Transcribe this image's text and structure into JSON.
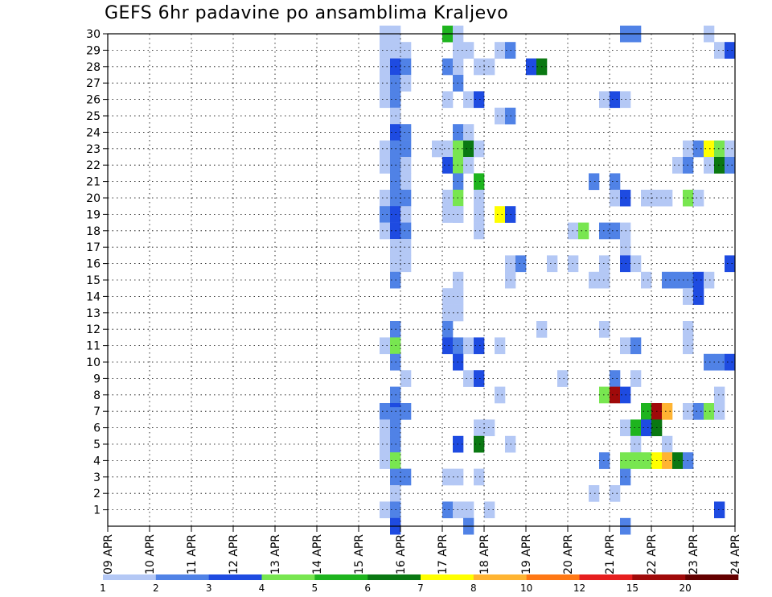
{
  "chart_data": {
    "type": "heatmap",
    "title": "GEFS 6hr padavine po ansamblima Kraljevo",
    "xlabel": "",
    "ylabel": "",
    "x_ticks": [
      "09 APR",
      "10 APR",
      "11 APR",
      "12 APR",
      "13 APR",
      "14 APR",
      "15 APR",
      "16 APR",
      "17 APR",
      "18 APR",
      "19 APR",
      "20 APR",
      "21 APR",
      "22 APR",
      "23 APR",
      "24 APR"
    ],
    "xlim_days": [
      0,
      15
    ],
    "time_step_hours": 6,
    "y_ticks": [
      1,
      2,
      3,
      4,
      5,
      6,
      7,
      8,
      9,
      10,
      11,
      12,
      13,
      14,
      15,
      16,
      17,
      18,
      19,
      20,
      21,
      22,
      23,
      24,
      25,
      26,
      27,
      28,
      29,
      30
    ],
    "ylim": [
      0,
      30
    ],
    "grid": true,
    "colorbar": {
      "labels": [
        "1",
        "2",
        "3",
        "4",
        "5",
        "6",
        "7",
        "8",
        "10",
        "12",
        "15",
        "20"
      ],
      "colors": [
        "#b4c8f5",
        "#5082e6",
        "#1e4be1",
        "#78e650",
        "#1eb41e",
        "#0a7812",
        "#ffff00",
        "#ffb432",
        "#ff7814",
        "#e61e1e",
        "#a00a0a",
        "#640000"
      ]
    },
    "cells": [
      [
        30,
        6.5,
        1
      ],
      [
        30,
        6.75,
        1
      ],
      [
        30,
        8,
        5
      ],
      [
        30,
        8.25,
        1
      ],
      [
        30,
        12.25,
        2
      ],
      [
        30,
        12.5,
        2
      ],
      [
        30,
        14.25,
        1
      ],
      [
        29,
        6.5,
        1
      ],
      [
        29,
        6.75,
        1
      ],
      [
        29,
        7,
        1
      ],
      [
        29,
        8.25,
        1
      ],
      [
        29,
        8.5,
        1
      ],
      [
        29,
        9.25,
        1
      ],
      [
        29,
        9.5,
        2
      ],
      [
        29,
        14.5,
        1
      ],
      [
        29,
        14.75,
        3
      ],
      [
        28,
        6.5,
        1
      ],
      [
        28,
        6.75,
        3
      ],
      [
        28,
        7,
        2
      ],
      [
        28,
        8,
        2
      ],
      [
        28,
        8.25,
        1
      ],
      [
        28,
        8.75,
        1
      ],
      [
        28,
        9,
        1
      ],
      [
        28,
        10,
        3
      ],
      [
        28,
        10.25,
        6
      ],
      [
        27,
        6.5,
        1
      ],
      [
        27,
        6.75,
        2
      ],
      [
        27,
        7,
        1
      ],
      [
        27,
        8.25,
        2
      ],
      [
        26,
        6.5,
        1
      ],
      [
        26,
        6.75,
        2
      ],
      [
        26,
        8,
        1
      ],
      [
        26,
        8.5,
        1
      ],
      [
        26,
        8.75,
        3
      ],
      [
        26,
        11.75,
        1
      ],
      [
        26,
        12,
        3
      ],
      [
        26,
        12.25,
        1
      ],
      [
        25,
        6.75,
        1
      ],
      [
        25,
        9.25,
        1
      ],
      [
        25,
        9.5,
        2
      ],
      [
        24,
        6.75,
        3
      ],
      [
        24,
        7,
        2
      ],
      [
        24,
        8.25,
        2
      ],
      [
        24,
        8.5,
        1
      ],
      [
        23,
        6.5,
        1
      ],
      [
        23,
        6.75,
        2
      ],
      [
        23,
        7,
        2
      ],
      [
        23,
        7.75,
        1
      ],
      [
        23,
        8,
        1
      ],
      [
        23,
        8.25,
        4
      ],
      [
        23,
        8.5,
        6
      ],
      [
        23,
        8.75,
        1
      ],
      [
        23,
        13.75,
        1
      ],
      [
        23,
        14,
        2
      ],
      [
        23,
        14.25,
        7
      ],
      [
        23,
        14.5,
        4
      ],
      [
        23,
        14.75,
        1
      ],
      [
        22,
        6.5,
        1
      ],
      [
        22,
        6.75,
        2
      ],
      [
        22,
        7,
        1
      ],
      [
        22,
        8,
        3
      ],
      [
        22,
        8.25,
        4
      ],
      [
        22,
        8.5,
        1
      ],
      [
        22,
        13.5,
        1
      ],
      [
        22,
        13.75,
        2
      ],
      [
        22,
        14.25,
        1
      ],
      [
        22,
        14.5,
        6
      ],
      [
        22,
        14.75,
        2
      ],
      [
        21,
        6.75,
        2
      ],
      [
        21,
        7,
        1
      ],
      [
        21,
        8.25,
        2
      ],
      [
        21,
        8.75,
        5
      ],
      [
        21,
        11.5,
        2
      ],
      [
        21,
        12,
        2
      ],
      [
        20,
        6.5,
        1
      ],
      [
        20,
        6.75,
        2
      ],
      [
        20,
        7,
        2
      ],
      [
        20,
        8,
        1
      ],
      [
        20,
        8.25,
        4
      ],
      [
        20,
        8.75,
        1
      ],
      [
        20,
        12,
        1
      ],
      [
        20,
        12.25,
        3
      ],
      [
        20,
        12.75,
        1
      ],
      [
        20,
        13,
        1
      ],
      [
        20,
        13.25,
        1
      ],
      [
        20,
        13.75,
        4
      ],
      [
        20,
        14,
        1
      ],
      [
        19,
        6.5,
        2
      ],
      [
        19,
        6.75,
        3
      ],
      [
        19,
        7,
        1
      ],
      [
        19,
        8.25,
        1
      ],
      [
        19,
        8.25,
        1
      ],
      [
        19,
        8,
        1
      ],
      [
        19,
        8.75,
        1
      ],
      [
        19,
        9.25,
        7
      ],
      [
        19,
        9.5,
        3
      ],
      [
        18,
        6.5,
        1
      ],
      [
        18,
        6.75,
        3
      ],
      [
        18,
        7,
        2
      ],
      [
        18,
        8.75,
        1
      ],
      [
        18,
        11,
        1
      ],
      [
        18,
        11.25,
        4
      ],
      [
        18,
        11.75,
        2
      ],
      [
        18,
        12,
        2
      ],
      [
        18,
        12.25,
        1
      ],
      [
        17,
        6.75,
        1
      ],
      [
        17,
        7,
        1
      ],
      [
        17,
        12.25,
        1
      ],
      [
        16,
        6.75,
        1
      ],
      [
        16,
        7,
        1
      ],
      [
        16,
        9.5,
        1
      ],
      [
        16,
        9.75,
        2
      ],
      [
        16,
        10.5,
        1
      ],
      [
        16,
        11,
        1
      ],
      [
        16,
        11.75,
        1
      ],
      [
        16,
        12.25,
        3
      ],
      [
        16,
        12.5,
        1
      ],
      [
        16,
        14.75,
        3
      ],
      [
        15,
        6.75,
        2
      ],
      [
        15,
        8.25,
        1
      ],
      [
        15,
        9.5,
        1
      ],
      [
        15,
        11.5,
        1
      ],
      [
        15,
        11.75,
        1
      ],
      [
        15,
        12.75,
        1
      ],
      [
        15,
        13.25,
        2
      ],
      [
        15,
        13.5,
        2
      ],
      [
        15,
        13.75,
        2
      ],
      [
        15,
        14,
        3
      ],
      [
        15,
        14.25,
        1
      ],
      [
        14,
        8,
        1
      ],
      [
        14,
        8.25,
        1
      ],
      [
        14,
        13.75,
        1
      ],
      [
        14,
        14,
        3
      ],
      [
        13,
        8,
        1
      ],
      [
        13,
        8.25,
        1
      ],
      [
        12,
        6.75,
        2
      ],
      [
        12,
        8,
        2
      ],
      [
        12,
        10.25,
        1
      ],
      [
        12,
        11.75,
        1
      ],
      [
        12,
        13.75,
        1
      ],
      [
        11,
        6.5,
        1
      ],
      [
        11,
        6.75,
        4
      ],
      [
        11,
        8,
        3
      ],
      [
        11,
        8.25,
        2
      ],
      [
        11,
        8.5,
        1
      ],
      [
        11,
        8.75,
        3
      ],
      [
        11,
        9.25,
        1
      ],
      [
        11,
        12.25,
        1
      ],
      [
        11,
        12.5,
        2
      ],
      [
        11,
        13.75,
        1
      ],
      [
        10,
        6.75,
        2
      ],
      [
        10,
        8.25,
        3
      ],
      [
        10,
        14.25,
        2
      ],
      [
        10,
        14.5,
        2
      ],
      [
        10,
        14.75,
        3
      ],
      [
        9,
        7,
        1
      ],
      [
        9,
        8.5,
        1
      ],
      [
        9,
        8.75,
        3
      ],
      [
        9,
        10.75,
        1
      ],
      [
        9,
        12,
        2
      ],
      [
        9,
        12.5,
        1
      ],
      [
        8,
        6.75,
        2
      ],
      [
        8,
        9.25,
        1
      ],
      [
        8,
        11.75,
        4
      ],
      [
        8,
        12,
        11
      ],
      [
        8,
        12.25,
        3
      ],
      [
        8,
        14.5,
        1
      ],
      [
        7,
        6.5,
        2
      ],
      [
        7,
        6.75,
        3
      ],
      [
        7,
        7,
        2
      ],
      [
        7,
        12.75,
        5
      ],
      [
        7,
        13,
        11
      ],
      [
        7,
        13.25,
        8
      ],
      [
        7,
        13.75,
        1
      ],
      [
        7,
        14,
        2
      ],
      [
        7,
        14.25,
        4
      ],
      [
        7,
        14.5,
        1
      ],
      [
        6,
        6.5,
        1
      ],
      [
        6,
        6.75,
        2
      ],
      [
        6,
        8.75,
        1
      ],
      [
        6,
        9,
        1
      ],
      [
        6,
        12.25,
        1
      ],
      [
        6,
        12.5,
        5
      ],
      [
        6,
        12.75,
        3
      ],
      [
        6,
        13,
        6
      ],
      [
        5,
        6.5,
        1
      ],
      [
        6.75,
        6.75,
        2
      ],
      [
        5,
        6.75,
        2
      ],
      [
        5,
        8.25,
        3
      ],
      [
        5,
        8.75,
        6
      ],
      [
        5,
        9.5,
        1
      ],
      [
        5,
        12.5,
        1
      ],
      [
        5,
        13.25,
        1
      ],
      [
        4,
        6.5,
        1
      ],
      [
        4,
        6.75,
        4
      ],
      [
        4,
        11.75,
        2
      ],
      [
        4,
        12.25,
        4
      ],
      [
        4,
        12.5,
        4
      ],
      [
        4,
        12.75,
        4
      ],
      [
        4,
        13,
        7
      ],
      [
        4,
        13.25,
        8
      ],
      [
        4,
        13.5,
        6
      ],
      [
        4,
        13.75,
        2
      ],
      [
        3,
        6.75,
        2
      ],
      [
        3,
        7,
        2
      ],
      [
        3,
        8,
        1
      ],
      [
        3,
        8.25,
        1
      ],
      [
        3,
        8.75,
        1
      ],
      [
        3,
        12.25,
        2
      ],
      [
        2,
        6.75,
        1
      ],
      [
        2,
        11.5,
        1
      ],
      [
        2,
        12,
        1
      ],
      [
        1,
        6.5,
        1
      ],
      [
        1,
        6.75,
        2
      ],
      [
        1,
        8,
        2
      ],
      [
        1,
        8.25,
        1
      ],
      [
        1,
        8.5,
        1
      ],
      [
        1,
        9,
        1
      ],
      [
        1,
        14.5,
        3
      ],
      [
        0,
        6.75,
        3
      ],
      [
        0,
        8.5,
        2
      ],
      [
        0,
        12.25,
        2
      ]
    ]
  }
}
